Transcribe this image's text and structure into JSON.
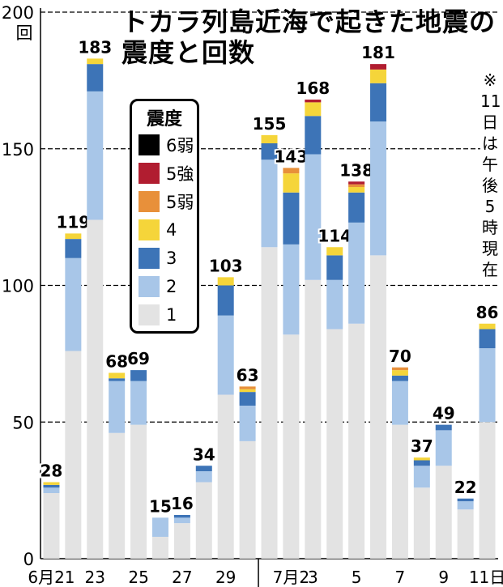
{
  "chart_data": {
    "type": "bar",
    "stacked": true,
    "title": [
      "トカラ列島近海で起きた地震の",
      "震度と回数"
    ],
    "y_unit_label": "回",
    "ylim": [
      0,
      200
    ],
    "y_ticks": [
      "200",
      "150",
      "100",
      "50",
      "0"
    ],
    "grid": "horizontal-dashed",
    "x_ticks": [
      "6月21",
      "23",
      "25",
      "27",
      "29",
      "7月2",
      "3",
      "5",
      "7",
      "9",
      "11日"
    ],
    "categories": [
      "6/21",
      "6/22",
      "6/23",
      "6/24",
      "6/25",
      "6/26",
      "6/27",
      "6/28",
      "6/29",
      "6/30",
      "7/1",
      "7/2",
      "7/3",
      "7/4",
      "7/5",
      "7/6",
      "7/7",
      "7/8",
      "7/9",
      "7/10",
      "7/11"
    ],
    "totals": [
      28,
      119,
      183,
      68,
      69,
      15,
      16,
      34,
      103,
      63,
      155,
      143,
      168,
      114,
      138,
      181,
      70,
      37,
      49,
      22,
      86
    ],
    "total_labels": [
      "28",
      "119",
      "183",
      "68",
      "69",
      "15",
      "16",
      "34",
      "103",
      "63",
      "155",
      "143",
      "168",
      "114",
      "138",
      "181",
      "70",
      "37",
      "49",
      "22",
      "86"
    ],
    "legend_title": "震度",
    "series": [
      {
        "name": "1",
        "color": "#e3e3e3",
        "values": [
          24,
          76,
          124,
          46,
          49,
          8,
          13,
          28,
          60,
          43,
          114,
          82,
          102,
          84,
          86,
          111,
          49,
          26,
          34,
          18,
          50
        ]
      },
      {
        "name": "2",
        "color": "#a8c6e8",
        "values": [
          2,
          34,
          47,
          19,
          16,
          7,
          2,
          4,
          29,
          13,
          32,
          33,
          46,
          18,
          37,
          49,
          16,
          8,
          13,
          3,
          27
        ]
      },
      {
        "name": "3",
        "color": "#3d74b7",
        "values": [
          1,
          7,
          10,
          1,
          4,
          0,
          1,
          2,
          11,
          5,
          6,
          19,
          14,
          9,
          11,
          14,
          2,
          2,
          2,
          1,
          7
        ]
      },
      {
        "name": "4",
        "color": "#f5d53a",
        "values": [
          1,
          2,
          2,
          2,
          0,
          0,
          0,
          0,
          3,
          1,
          3,
          7,
          5,
          3,
          2,
          5,
          2,
          1,
          0,
          0,
          2
        ]
      },
      {
        "name": "5弱",
        "color": "#e8903a",
        "values": [
          0,
          0,
          0,
          0,
          0,
          0,
          0,
          0,
          0,
          1,
          0,
          2,
          0,
          0,
          1,
          0,
          1,
          0,
          0,
          0,
          0
        ]
      },
      {
        "name": "5強",
        "color": "#b11d30",
        "values": [
          0,
          0,
          0,
          0,
          0,
          0,
          0,
          0,
          0,
          0,
          0,
          0,
          1,
          0,
          1,
          2,
          0,
          0,
          0,
          0,
          0
        ]
      },
      {
        "name": "6弱",
        "color": "#000000",
        "values": [
          0,
          0,
          0,
          0,
          0,
          0,
          0,
          0,
          0,
          0,
          0,
          0,
          0,
          0,
          0,
          0,
          0,
          0,
          0,
          0,
          0
        ]
      }
    ],
    "note": [
      "※",
      "11",
      "日",
      "は",
      "午",
      "後",
      "5",
      "時",
      "現",
      "在"
    ]
  }
}
